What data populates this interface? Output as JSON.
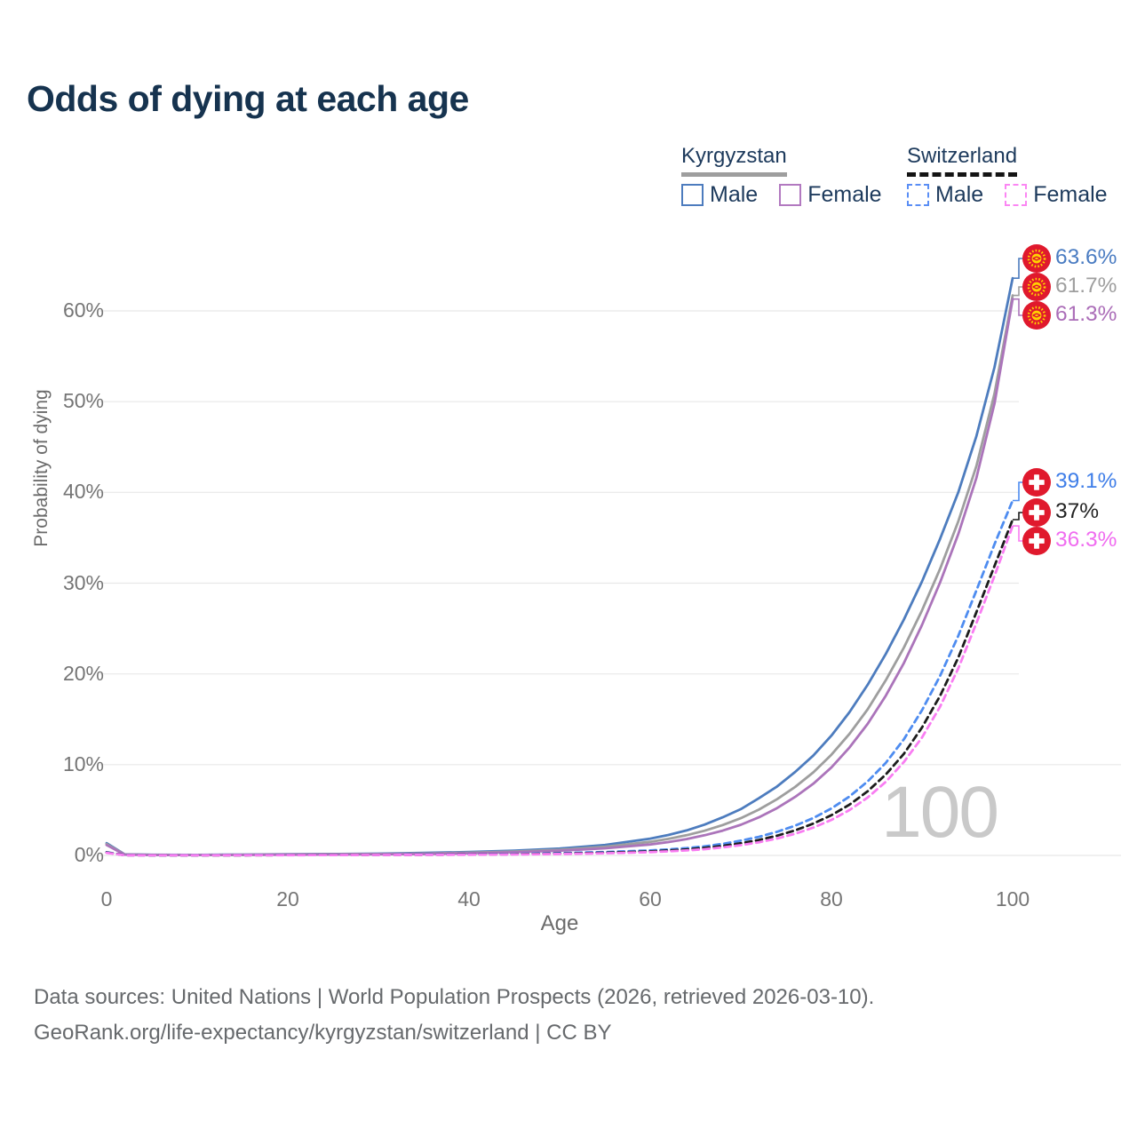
{
  "title": "Odds of dying at each age",
  "watermark": "100",
  "legend": {
    "groups": [
      {
        "name": "Kyrgyzstan",
        "line_style": "solid",
        "underline_color": "#9e9e9e",
        "items": [
          {
            "label": "Male",
            "color": "#4d7cbe"
          },
          {
            "label": "Female",
            "color": "#b279c0"
          }
        ]
      },
      {
        "name": "Switzerland",
        "line_style": "dashed",
        "underline_color": "#141414",
        "items": [
          {
            "label": "Male",
            "color": "#5a8ef5"
          },
          {
            "label": "Female",
            "color": "#fb86f3"
          }
        ]
      }
    ]
  },
  "footer": {
    "line1": "Data sources: United Nations | World Population Prospects (2026, retrieved 2026-03-10).",
    "line2": "GeoRank.org/life-expectancy/kyrgyzstan/switzerland | CC BY"
  },
  "chart_data": {
    "type": "line",
    "title": "Odds of dying at each age",
    "xlabel": "Age",
    "ylabel": "Probability of dying",
    "xlim": [
      0,
      100
    ],
    "ylim": [
      0,
      65
    ],
    "x_ticks": [
      "0",
      "20",
      "40",
      "60",
      "80",
      "100"
    ],
    "x_tick_ages": [
      0,
      20,
      40,
      60,
      80,
      100
    ],
    "y_ticks": [
      "0%",
      "10%",
      "20%",
      "30%",
      "40%",
      "50%",
      "60%"
    ],
    "y_tick_values": [
      0,
      10,
      20,
      30,
      40,
      50,
      60
    ],
    "grid": "horizontal",
    "legend_position": "top-right",
    "ages": [
      0,
      2,
      5,
      10,
      15,
      20,
      25,
      30,
      35,
      40,
      45,
      50,
      55,
      60,
      62,
      64,
      66,
      68,
      70,
      72,
      74,
      76,
      78,
      80,
      82,
      84,
      86,
      88,
      90,
      92,
      94,
      96,
      98,
      100
    ],
    "series": [
      {
        "name": "Kyrgyzstan Male",
        "country": "Kyrgyzstan",
        "sex": "Male",
        "style": "solid",
        "color": "#4d7cbe",
        "end_label": "63.6%",
        "label_color": "#4a7cc2",
        "flag": "kyrgyzstan",
        "values": [
          1.35,
          0.12,
          0.07,
          0.06,
          0.09,
          0.13,
          0.16,
          0.2,
          0.27,
          0.37,
          0.52,
          0.75,
          1.15,
          1.85,
          2.25,
          2.75,
          3.4,
          4.2,
          5.1,
          6.3,
          7.6,
          9.2,
          11.0,
          13.2,
          15.8,
          18.8,
          22.2,
          26.0,
          30.2,
          34.9,
          40.0,
          46.2,
          53.8,
          63.6
        ]
      },
      {
        "name": "Kyrgyzstan Both sexes",
        "country": "Kyrgyzstan",
        "sex": "Both",
        "style": "solid",
        "color": "#9e9e9e",
        "end_label": "61.7%",
        "label_color": "#9e9e9e",
        "flag": "kyrgyzstan",
        "values": [
          1.25,
          0.1,
          0.06,
          0.05,
          0.07,
          0.1,
          0.13,
          0.16,
          0.21,
          0.3,
          0.42,
          0.62,
          0.95,
          1.5,
          1.82,
          2.22,
          2.72,
          3.35,
          4.1,
          5.05,
          6.2,
          7.55,
          9.15,
          11.1,
          13.4,
          16.1,
          19.3,
          22.9,
          27.0,
          31.6,
          36.8,
          42.9,
          50.9,
          61.7
        ]
      },
      {
        "name": "Kyrgyzstan Female",
        "country": "Kyrgyzstan",
        "sex": "Female",
        "style": "solid",
        "color": "#ab74ba",
        "end_label": "61.3%",
        "label_color": "#ab6db8",
        "flag": "kyrgyzstan",
        "values": [
          1.15,
          0.09,
          0.05,
          0.04,
          0.06,
          0.08,
          0.1,
          0.13,
          0.17,
          0.24,
          0.35,
          0.52,
          0.78,
          1.2,
          1.47,
          1.8,
          2.22,
          2.73,
          3.38,
          4.2,
          5.22,
          6.45,
          7.9,
          9.7,
          11.9,
          14.5,
          17.6,
          21.2,
          25.4,
          30.1,
          35.4,
          41.6,
          49.8,
          61.3
        ]
      },
      {
        "name": "Switzerland Male",
        "country": "Switzerland",
        "sex": "Male",
        "style": "dashed",
        "color": "#4e8cf0",
        "end_label": "39.1%",
        "label_color": "#3f7ee8",
        "flag": "switzerland",
        "values": [
          0.35,
          0.03,
          0.02,
          0.015,
          0.03,
          0.05,
          0.06,
          0.07,
          0.09,
          0.12,
          0.17,
          0.25,
          0.37,
          0.55,
          0.66,
          0.8,
          1.0,
          1.27,
          1.62,
          2.05,
          2.6,
          3.28,
          4.12,
          5.18,
          6.5,
          8.15,
          10.2,
          12.8,
          16.0,
          19.8,
          24.2,
          29.2,
          34.3,
          39.1
        ]
      },
      {
        "name": "Switzerland Both sexes",
        "country": "Switzerland",
        "sex": "Both",
        "style": "dashed",
        "color": "#1c1c1c",
        "end_label": "37%",
        "label_color": "#222222",
        "flag": "switzerland",
        "values": [
          0.32,
          0.025,
          0.018,
          0.013,
          0.022,
          0.038,
          0.047,
          0.057,
          0.072,
          0.095,
          0.135,
          0.195,
          0.29,
          0.44,
          0.54,
          0.66,
          0.83,
          1.05,
          1.34,
          1.7,
          2.17,
          2.76,
          3.5,
          4.43,
          5.6,
          7.07,
          8.92,
          11.2,
          14.1,
          17.6,
          21.8,
          26.8,
          31.9,
          37.0
        ]
      },
      {
        "name": "Switzerland Female",
        "country": "Switzerland",
        "sex": "Female",
        "style": "dashed",
        "color": "#f97df2",
        "end_label": "36.3%",
        "label_color": "#f06cf0",
        "flag": "switzerland",
        "values": [
          0.28,
          0.02,
          0.014,
          0.01,
          0.016,
          0.026,
          0.035,
          0.045,
          0.058,
          0.078,
          0.108,
          0.158,
          0.235,
          0.36,
          0.45,
          0.55,
          0.69,
          0.88,
          1.13,
          1.45,
          1.86,
          2.39,
          3.06,
          3.92,
          5.0,
          6.38,
          8.1,
          10.3,
          13.0,
          16.4,
          20.6,
          25.6,
          30.8,
          36.3
        ]
      }
    ],
    "flag_colors": {
      "red": "#e0192d",
      "yellow": "#ffd100",
      "white": "#ffffff"
    }
  }
}
